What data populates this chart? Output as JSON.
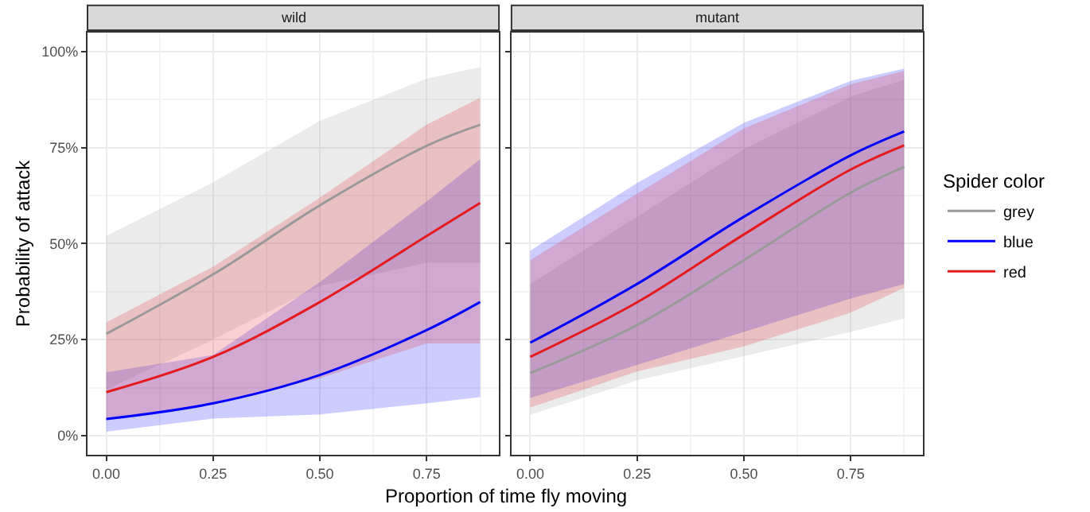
{
  "chart_data": [
    {
      "type": "line",
      "title": "wild",
      "ylabel": "Probability of attack",
      "xlabel": "Proportion of time fly moving",
      "x": [
        0,
        0.25,
        0.5,
        0.75,
        0.875
      ],
      "xlim": [
        -0.044,
        0.919
      ],
      "xticks": [
        {
          "value": 0,
          "label": "0.00"
        },
        {
          "value": 0.25,
          "label": "0.25"
        },
        {
          "value": 0.5,
          "label": "0.50"
        },
        {
          "value": 0.75,
          "label": "0.75"
        }
      ],
      "ylim": [
        -5,
        105
      ],
      "yticks": [
        {
          "value": 0,
          "label": "0%"
        },
        {
          "value": 25,
          "label": "25%"
        },
        {
          "value": 50,
          "label": "50%"
        },
        {
          "value": 75,
          "label": "75%"
        },
        {
          "value": 100,
          "label": "100%"
        }
      ],
      "grid": true,
      "legend": "right",
      "marker": "none",
      "line_style": "solid",
      "series": [
        {
          "name": "grey",
          "color": "#999999",
          "values": [
            26.5,
            42,
            60,
            75.5,
            81
          ],
          "lower": [
            12,
            25,
            39,
            45,
            45
          ],
          "upper": [
            52,
            66,
            82,
            93,
            96
          ]
        },
        {
          "name": "blue",
          "color": "#0000ff",
          "values": [
            4.3,
            8.4,
            15.8,
            27.5,
            34.8
          ],
          "lower": [
            1,
            4.4,
            5.5,
            8.4,
            10
          ],
          "upper": [
            16.5,
            21,
            40,
            61,
            72
          ]
        },
        {
          "name": "red",
          "color": "#e41a1c",
          "values": [
            11.3,
            20.5,
            34.8,
            52,
            60.6
          ],
          "lower": [
            4,
            8,
            15,
            24,
            24
          ],
          "upper": [
            29.5,
            44,
            62,
            81,
            88
          ]
        }
      ]
    },
    {
      "type": "line",
      "title": "mutant",
      "legend_title": "Spider color",
      "x": [
        0,
        0.25,
        0.5,
        0.75,
        0.875
      ],
      "xlim": [
        -0.044,
        0.919
      ],
      "xticks": [
        {
          "value": 0,
          "label": "0.00"
        },
        {
          "value": 0.25,
          "label": "0.25"
        },
        {
          "value": 0.5,
          "label": "0.50"
        },
        {
          "value": 0.75,
          "label": "0.75"
        }
      ],
      "ylim": [
        -5,
        105
      ],
      "yticks": [
        0,
        25,
        50,
        75,
        100
      ],
      "tick_labels": "x",
      "grid": true,
      "legend": "right",
      "marker": "none",
      "line_style": "solid",
      "series": [
        {
          "name": "grey",
          "color": "#999999",
          "values": [
            16.3,
            28.8,
            45.7,
            63.3,
            70
          ],
          "lower": [
            5.4,
            14.4,
            20.7,
            27,
            30.5
          ],
          "upper": [
            39.5,
            57,
            74.6,
            88.3,
            92.7
          ]
        },
        {
          "name": "blue",
          "color": "#0000ff",
          "values": [
            24.2,
            39.5,
            57,
            73,
            79.2
          ],
          "lower": [
            9.8,
            18.4,
            27,
            35.7,
            39.5
          ],
          "upper": [
            48.2,
            65.8,
            81.5,
            92.4,
            95.6
          ]
        },
        {
          "name": "red",
          "color": "#e41a1c",
          "values": [
            20.5,
            34.7,
            52.4,
            69.3,
            75.6
          ],
          "lower": [
            7.3,
            16.7,
            23.2,
            32,
            38.5
          ],
          "upper": [
            45.7,
            63,
            80,
            91.5,
            95
          ]
        }
      ]
    }
  ]
}
